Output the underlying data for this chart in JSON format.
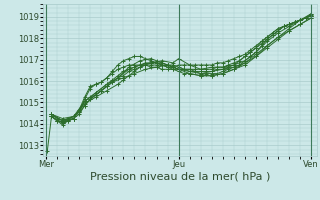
{
  "bg_color": "#cce8e8",
  "grid_color": "#aacccc",
  "line_color": "#2d6e2d",
  "xlabel": "Pression niveau de la mer( hPa )",
  "xlabel_fontsize": 8,
  "xtick_labels": [
    "Mer",
    "Jeu",
    "Ven"
  ],
  "xtick_positions": [
    0,
    48,
    96
  ],
  "ytick_labels": [
    "1013",
    "1014",
    "1015",
    "1016",
    "1017",
    "1018",
    "1019"
  ],
  "ylim": [
    1012.5,
    1019.6
  ],
  "xlim": [
    -1,
    98
  ],
  "series": [
    [
      0.5,
      1012.75,
      2.0,
      1014.35,
      4.0,
      1014.15,
      6.0,
      1014.1,
      8.0,
      1014.2,
      10.0,
      1014.35,
      12.0,
      1014.6,
      14.0,
      1015.05,
      16.0,
      1015.25,
      18.0,
      1015.35,
      20.0,
      1015.55,
      22.0,
      1015.75,
      24.0,
      1015.95,
      28.0,
      1016.15,
      32.0,
      1016.35,
      36.0,
      1016.55,
      40.0,
      1016.65,
      44.0,
      1016.75,
      48.0,
      1016.55,
      52.0,
      1016.45,
      56.0,
      1016.35,
      60.0,
      1016.45,
      64.0,
      1016.55,
      68.0,
      1016.65,
      72.0,
      1016.85,
      76.0,
      1017.15,
      80.0,
      1017.65,
      84.0,
      1018.05,
      88.0,
      1018.45,
      92.0,
      1018.85,
      96.0,
      1019.15
    ],
    [
      2.0,
      1014.35,
      4.0,
      1014.15,
      6.0,
      1014.05,
      8.0,
      1014.15,
      10.0,
      1014.25,
      12.0,
      1014.45,
      14.0,
      1014.85,
      16.0,
      1015.15,
      18.0,
      1015.35,
      20.0,
      1015.55,
      22.0,
      1015.75,
      24.0,
      1015.95,
      26.0,
      1016.15,
      30.0,
      1016.55,
      34.0,
      1016.75,
      38.0,
      1016.85,
      42.0,
      1016.95,
      46.0,
      1016.85,
      48.0,
      1017.05,
      52.0,
      1016.75,
      56.0,
      1016.55,
      60.0,
      1016.65,
      64.0,
      1016.65,
      68.0,
      1016.75,
      72.0,
      1016.95,
      76.0,
      1017.35,
      80.0,
      1017.85,
      84.0,
      1018.25,
      88.0,
      1018.55,
      92.0,
      1018.85,
      96.0,
      1019.05
    ],
    [
      2.0,
      1014.45,
      6.0,
      1014.15,
      10.0,
      1014.25,
      14.0,
      1015.05,
      18.0,
      1015.45,
      22.0,
      1015.85,
      26.0,
      1016.15,
      30.0,
      1016.65,
      34.0,
      1016.95,
      38.0,
      1017.05,
      40.0,
      1016.95,
      42.0,
      1016.85,
      44.0,
      1016.75,
      46.0,
      1016.65,
      48.0,
      1016.55,
      52.0,
      1016.35,
      56.0,
      1016.25,
      60.0,
      1016.25,
      64.0,
      1016.35,
      68.0,
      1016.55,
      72.0,
      1016.85,
      76.0,
      1017.25,
      80.0,
      1017.65,
      84.0,
      1018.05,
      88.0,
      1018.35,
      92.0,
      1018.65,
      96.0,
      1018.95
    ],
    [
      2.0,
      1014.35,
      6.0,
      1014.05,
      10.0,
      1014.25,
      14.0,
      1014.95,
      18.0,
      1015.25,
      22.0,
      1015.55,
      26.0,
      1015.85,
      28.0,
      1016.05,
      30.0,
      1016.25,
      32.0,
      1016.45,
      34.0,
      1016.65,
      36.0,
      1016.75,
      38.0,
      1016.85,
      40.0,
      1016.85,
      42.0,
      1016.75,
      44.0,
      1016.65,
      46.0,
      1016.55,
      48.0,
      1016.45,
      50.0,
      1016.35,
      52.0,
      1016.35,
      56.0,
      1016.25,
      60.0,
      1016.25,
      64.0,
      1016.35,
      68.0,
      1016.55,
      72.0,
      1016.75,
      76.0,
      1017.15,
      80.0,
      1017.55,
      84.0,
      1017.95,
      88.0,
      1018.35,
      92.0,
      1018.65,
      96.0,
      1018.95
    ],
    [
      2.0,
      1014.45,
      6.0,
      1014.15,
      10.0,
      1014.35,
      12.0,
      1014.55,
      14.0,
      1014.85,
      16.0,
      1015.15,
      18.0,
      1015.35,
      20.0,
      1015.55,
      22.0,
      1015.75,
      24.0,
      1015.95,
      26.0,
      1016.15,
      28.0,
      1016.25,
      30.0,
      1016.45,
      32.0,
      1016.55,
      34.0,
      1016.65,
      36.0,
      1016.75,
      38.0,
      1016.75,
      40.0,
      1016.75,
      42.0,
      1016.75,
      44.0,
      1016.65,
      46.0,
      1016.65,
      48.0,
      1016.55,
      50.0,
      1016.55,
      52.0,
      1016.45,
      54.0,
      1016.45,
      56.0,
      1016.35,
      58.0,
      1016.35,
      60.0,
      1016.35,
      62.0,
      1016.35,
      64.0,
      1016.45,
      66.0,
      1016.55,
      68.0,
      1016.65,
      70.0,
      1016.75,
      72.0,
      1016.95,
      74.0,
      1017.15,
      76.0,
      1017.35,
      78.0,
      1017.65,
      80.0,
      1017.95,
      82.0,
      1018.15,
      84.0,
      1018.35,
      86.0,
      1018.55,
      88.0,
      1018.65,
      90.0,
      1018.75,
      92.0,
      1018.85,
      94.0,
      1018.95,
      96.0,
      1019.05
    ],
    [
      2.0,
      1014.45,
      6.0,
      1014.25,
      10.0,
      1014.35,
      14.0,
      1015.05,
      18.0,
      1015.45,
      22.0,
      1015.85,
      24.0,
      1016.05,
      26.0,
      1016.25,
      28.0,
      1016.45,
      30.0,
      1016.55,
      32.0,
      1016.65,
      34.0,
      1016.75,
      36.0,
      1016.85,
      38.0,
      1016.85,
      40.0,
      1016.85,
      42.0,
      1016.85,
      44.0,
      1016.75,
      46.0,
      1016.75,
      48.0,
      1016.65,
      50.0,
      1016.55,
      52.0,
      1016.55,
      54.0,
      1016.45,
      56.0,
      1016.45,
      58.0,
      1016.45,
      60.0,
      1016.45,
      62.0,
      1016.55,
      64.0,
      1016.55,
      66.0,
      1016.65,
      68.0,
      1016.75,
      70.0,
      1016.95,
      72.0,
      1017.15,
      74.0,
      1017.35,
      76.0,
      1017.55,
      78.0,
      1017.85,
      80.0,
      1018.05,
      82.0,
      1018.25,
      84.0,
      1018.45,
      86.0,
      1018.55,
      88.0,
      1018.65,
      90.0,
      1018.75,
      92.0,
      1018.85,
      94.0,
      1018.95,
      96.0,
      1019.05
    ],
    [
      2.0,
      1014.45,
      4.0,
      1014.25,
      6.0,
      1014.15,
      8.0,
      1014.25,
      10.0,
      1014.35,
      12.0,
      1014.55,
      14.0,
      1015.15,
      16.0,
      1015.65,
      18.0,
      1015.85,
      20.0,
      1015.95,
      22.0,
      1016.15,
      24.0,
      1016.45,
      26.0,
      1016.75,
      28.0,
      1016.95,
      30.0,
      1017.05,
      32.0,
      1017.15,
      34.0,
      1017.15,
      36.0,
      1017.05,
      38.0,
      1016.95,
      40.0,
      1016.85,
      42.0,
      1016.75,
      44.0,
      1016.75,
      46.0,
      1016.65,
      48.0,
      1016.75,
      50.0,
      1016.75,
      52.0,
      1016.75,
      54.0,
      1016.75,
      56.0,
      1016.75,
      58.0,
      1016.75,
      60.0,
      1016.75,
      62.0,
      1016.85,
      64.0,
      1016.85,
      66.0,
      1016.95,
      68.0,
      1017.05,
      70.0,
      1017.15,
      72.0,
      1017.25,
      74.0,
      1017.45,
      76.0,
      1017.65,
      78.0,
      1017.85,
      80.0,
      1018.05,
      82.0,
      1018.25,
      84.0,
      1018.45,
      86.0,
      1018.55,
      88.0,
      1018.65,
      90.0,
      1018.75,
      92.0,
      1018.85,
      94.0,
      1018.95,
      96.0,
      1019.15
    ],
    [
      2.0,
      1014.35,
      4.0,
      1014.15,
      6.0,
      1013.95,
      8.0,
      1014.15,
      10.0,
      1014.25,
      12.0,
      1014.65,
      14.0,
      1015.25,
      16.0,
      1015.75,
      18.0,
      1015.85,
      20.0,
      1015.95,
      22.0,
      1016.15,
      24.0,
      1016.35,
      26.0,
      1016.55,
      28.0,
      1016.65,
      30.0,
      1016.75,
      32.0,
      1016.75,
      34.0,
      1016.75,
      36.0,
      1016.75,
      38.0,
      1016.65,
      40.0,
      1016.65,
      42.0,
      1016.55,
      44.0,
      1016.55,
      46.0,
      1016.55,
      48.0,
      1016.55,
      50.0,
      1016.55,
      52.0,
      1016.55,
      54.0,
      1016.55,
      56.0,
      1016.55,
      58.0,
      1016.55,
      60.0,
      1016.55,
      62.0,
      1016.65,
      64.0,
      1016.65,
      66.0,
      1016.75,
      68.0,
      1016.85,
      70.0,
      1016.95,
      72.0,
      1017.15,
      74.0,
      1017.35,
      76.0,
      1017.55,
      78.0,
      1017.75,
      80.0,
      1017.95,
      82.0,
      1018.15,
      84.0,
      1018.35,
      86.0,
      1018.55,
      88.0,
      1018.65,
      90.0,
      1018.75,
      92.0,
      1018.85,
      94.0,
      1018.95,
      96.0,
      1019.1
    ]
  ]
}
